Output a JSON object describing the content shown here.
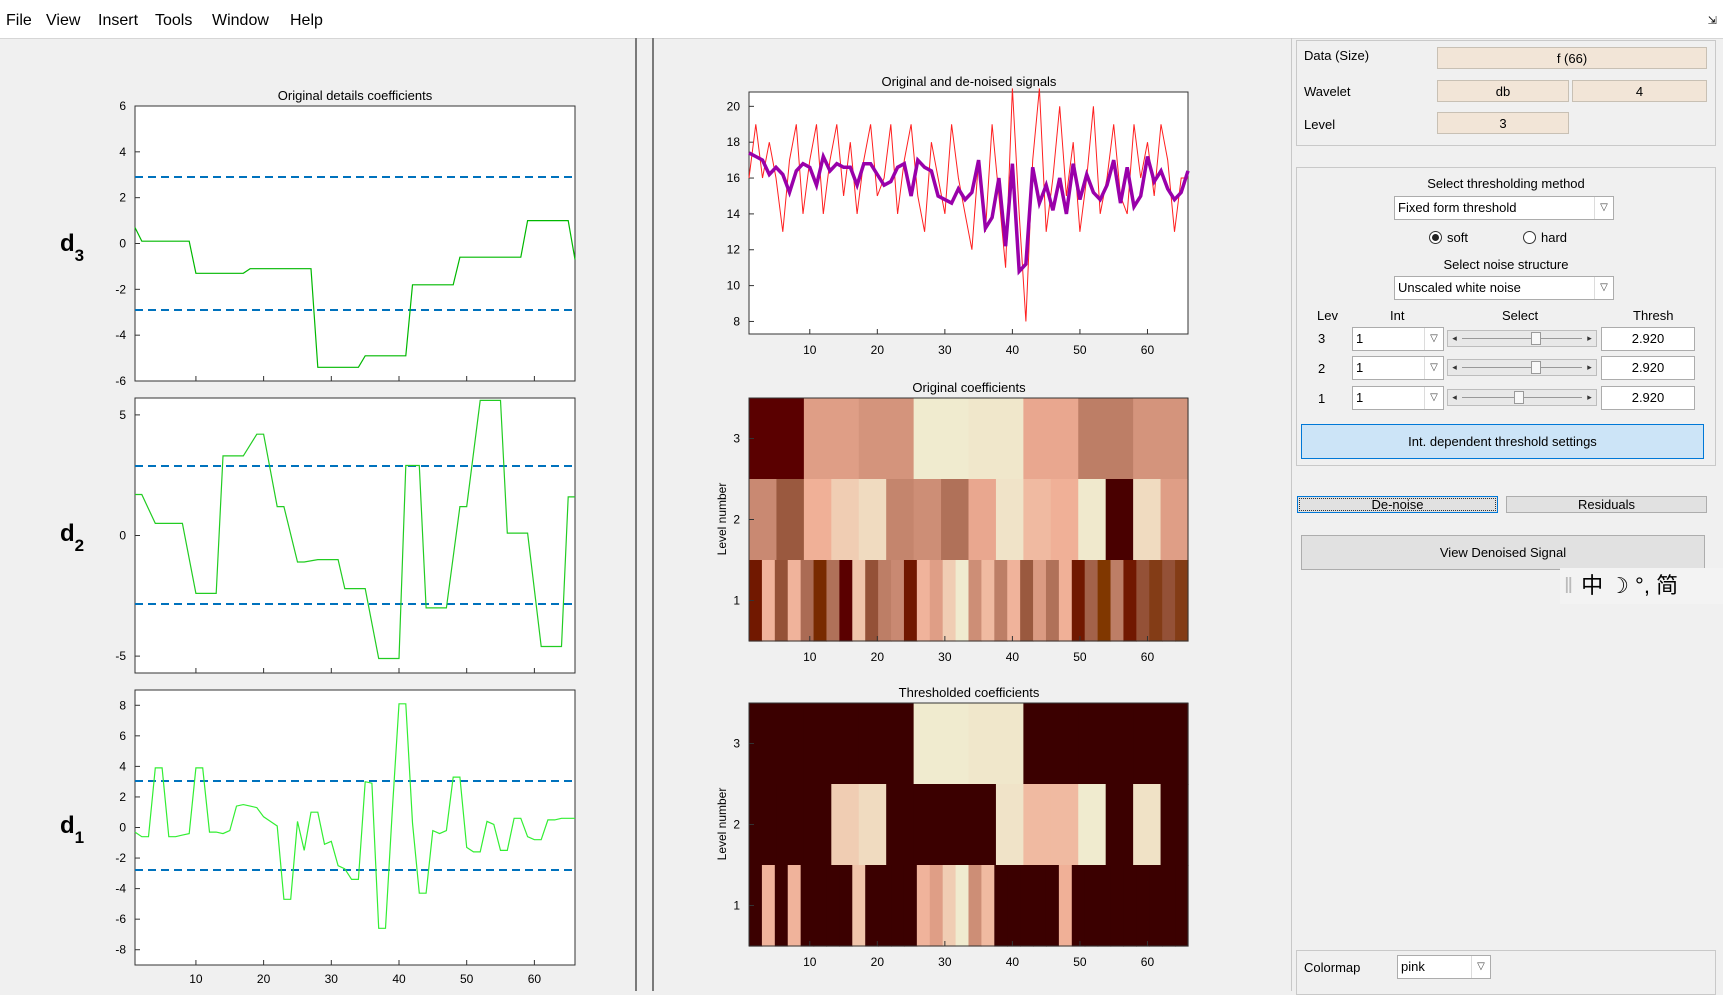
{
  "menu": [
    "File",
    "View",
    "Insert",
    "Tools",
    "Window",
    "Help"
  ],
  "left_plots": {
    "title": "Original details coefficients",
    "row_labels": [
      {
        "main": "d",
        "sub": "3"
      },
      {
        "main": "d",
        "sub": "2"
      },
      {
        "main": "d",
        "sub": "1"
      }
    ],
    "x_ticks": [
      "10",
      "20",
      "30",
      "40",
      "50",
      "60"
    ],
    "d3_yticks": [
      "6",
      "4",
      "2",
      "0",
      "-2",
      "-4",
      "-6"
    ],
    "d2_yticks": [
      "5",
      "0",
      "-5"
    ],
    "d1_yticks": [
      "8",
      "6",
      "4",
      "2",
      "0",
      "-2",
      "-4",
      "-6",
      "-8"
    ]
  },
  "middle_plots": {
    "signal_title": "Original and de-noised signals",
    "signal_yticks": [
      "20",
      "18",
      "16",
      "14",
      "12",
      "10",
      "8"
    ],
    "orig_coef_title": "Original coefficients",
    "thresh_coef_title": "Thresholded coefficients",
    "level_axis_label": "Level number",
    "level_ticks": [
      "3",
      "2",
      "1"
    ],
    "x_ticks": [
      "10",
      "20",
      "30",
      "40",
      "50",
      "60"
    ]
  },
  "controls": {
    "data_label": "Data  (Size)",
    "data_value": "f  (66)",
    "wavelet_label": "Wavelet",
    "wavelet_family": "db",
    "wavelet_order": "4",
    "level_label": "Level",
    "level_value": "3",
    "select_method_label": "Select thresholding method",
    "method_value": "Fixed form threshold",
    "soft_label": "soft",
    "hard_label": "hard",
    "soft_selected": true,
    "noise_label": "Select noise structure",
    "noise_value": "Unscaled white noise",
    "col_lev": "Lev",
    "col_int": "Int",
    "col_select": "Select",
    "col_thresh": "Thresh",
    "rows": [
      {
        "lev": "3",
        "int": "1",
        "thresh": "2.920",
        "slider_pos": 0.62
      },
      {
        "lev": "2",
        "int": "1",
        "thresh": "2.920",
        "slider_pos": 0.62
      },
      {
        "lev": "1",
        "int": "1",
        "thresh": "2.920",
        "slider_pos": 0.46
      }
    ],
    "int_dep_button": "Int. dependent threshold settings",
    "denoise_button": "De-noise",
    "residuals_button": "Residuals",
    "view_button": "View Denoised Signal",
    "colormap_label": "Colormap",
    "colormap_value": "pink"
  },
  "ime_toolbar": "中 ☽ °, 简",
  "colors": {
    "detail_green": "#00b800",
    "threshold_blue": "#0072bd",
    "signal_red": "#ff2020",
    "denoised_purple": "#9900aa",
    "button_blue": "#cce4f7"
  },
  "chart_data": [
    {
      "type": "line",
      "title": "Original details coefficients",
      "ylabel": "d3",
      "xlim": [
        1,
        66
      ],
      "ylim": [
        -6,
        6
      ],
      "threshold": [
        2.92,
        -2.92
      ],
      "x": [
        1,
        2,
        9,
        10,
        17,
        18,
        23,
        24,
        27,
        28,
        34,
        35,
        41,
        42,
        48,
        49,
        58,
        59,
        65,
        66
      ],
      "y": [
        0.7,
        0.1,
        0.1,
        -1.3,
        -1.3,
        -1.1,
        -1.1,
        -1.1,
        -1.1,
        -5.4,
        -5.4,
        -4.9,
        -4.9,
        -1.8,
        -1.8,
        -0.6,
        -0.6,
        1.0,
        1.0,
        -0.7
      ]
    },
    {
      "type": "line",
      "ylabel": "d2",
      "xlim": [
        1,
        66
      ],
      "ylim": [
        -5.7,
        5.7
      ],
      "threshold": [
        2.92,
        -2.92
      ],
      "x": [
        1,
        2,
        4,
        5,
        7,
        8,
        10,
        11,
        13,
        14,
        16,
        17,
        19,
        20,
        22,
        23,
        25,
        26,
        28,
        29,
        31,
        32,
        34,
        35,
        37,
        38,
        40,
        41,
        43,
        44,
        46,
        47,
        49,
        50,
        52,
        53,
        55,
        56,
        58,
        59,
        61,
        62,
        64,
        65,
        66
      ],
      "y": [
        1.7,
        1.7,
        0.5,
        0.5,
        0.5,
        0.5,
        -2.4,
        -2.4,
        -2.4,
        3.3,
        3.3,
        3.3,
        4.2,
        4.2,
        1.2,
        1.2,
        -1.1,
        -1.1,
        -1.0,
        -1.0,
        -1.0,
        -2.2,
        -2.2,
        -2.2,
        -5.1,
        -5.1,
        -5.1,
        2.9,
        2.9,
        -3.0,
        -3.0,
        -3.0,
        1.2,
        1.2,
        5.6,
        5.6,
        5.6,
        0.1,
        0.1,
        0.1,
        -4.6,
        -4.6,
        -4.6,
        1.6,
        1.6
      ]
    },
    {
      "type": "line",
      "ylabel": "d1",
      "xlim": [
        1,
        66
      ],
      "ylim": [
        -9,
        9
      ],
      "threshold": [
        2.92,
        -2.92
      ],
      "x": [
        1,
        2,
        3,
        4,
        5,
        6,
        7,
        8,
        9,
        10,
        11,
        12,
        13,
        14,
        15,
        16,
        17,
        18,
        19,
        20,
        21,
        22,
        23,
        24,
        25,
        26,
        27,
        28,
        29,
        30,
        31,
        32,
        33,
        34,
        35,
        36,
        37,
        38,
        39,
        40,
        41,
        42,
        43,
        44,
        45,
        46,
        47,
        48,
        49,
        50,
        51,
        52,
        53,
        54,
        55,
        56,
        57,
        58,
        59,
        60,
        61,
        62,
        63,
        64,
        65,
        66
      ],
      "y": [
        -0.3,
        -0.6,
        -0.6,
        3.9,
        3.9,
        -0.6,
        -0.6,
        -0.5,
        -0.4,
        3.9,
        3.9,
        -0.3,
        -0.3,
        -0.4,
        -0.2,
        1.4,
        1.5,
        1.4,
        1.3,
        0.7,
        0.4,
        0.1,
        -4.7,
        -4.7,
        0.4,
        -1.5,
        1.0,
        1.0,
        -1.1,
        -0.9,
        -2.5,
        -2.7,
        -3.4,
        -3.4,
        3.0,
        2.9,
        -6.6,
        -6.6,
        1.0,
        8.1,
        8.1,
        0.3,
        -4.3,
        -4.3,
        -0.2,
        -0.4,
        -0.2,
        3.3,
        3.3,
        -1.3,
        -1.6,
        -1.6,
        0.4,
        0.2,
        -1.5,
        -1.5,
        0.6,
        0.6,
        -0.6,
        -0.8,
        -0.8,
        0.5,
        0.5,
        0.6,
        0.6,
        0.6
      ]
    },
    {
      "type": "line",
      "title": "Original and de-noised signals",
      "xlim": [
        1,
        66
      ],
      "ylim": [
        7.3,
        20.8
      ],
      "series": [
        {
          "x": [
            1,
            2,
            3,
            4,
            5,
            6,
            7,
            8,
            9,
            10,
            11,
            12,
            13,
            14,
            15,
            16,
            17,
            18,
            19,
            20,
            21,
            22,
            23,
            24,
            25,
            26,
            27,
            28,
            29,
            30,
            31,
            32,
            33,
            34,
            35,
            36,
            37,
            38,
            39,
            40,
            41,
            42,
            43,
            44,
            45,
            46,
            47,
            48,
            49,
            50,
            51,
            52,
            53,
            54,
            55,
            56,
            57,
            58,
            59,
            60,
            61,
            62,
            63,
            64,
            65,
            66
          ],
          "y": [
            16,
            19,
            16,
            18,
            16,
            13,
            17,
            19,
            14,
            17,
            19,
            14,
            17,
            19,
            15,
            18,
            14,
            17,
            19,
            15,
            16,
            19,
            14,
            17,
            19,
            15,
            13,
            18,
            16,
            14,
            19,
            16,
            14,
            12,
            17,
            13,
            19,
            15,
            11,
            21,
            14,
            8,
            17,
            21,
            13,
            16,
            20,
            15,
            18,
            13,
            16,
            20,
            14,
            16,
            19,
            15,
            14,
            19,
            16,
            18,
            15,
            19,
            17,
            13,
            16,
            16
          ]
        },
        {
          "x": [
            1,
            2,
            3,
            4,
            5,
            6,
            7,
            8,
            9,
            10,
            11,
            12,
            13,
            14,
            15,
            16,
            17,
            18,
            19,
            20,
            21,
            22,
            23,
            24,
            25,
            26,
            27,
            28,
            29,
            30,
            31,
            32,
            33,
            34,
            35,
            36,
            37,
            38,
            39,
            40,
            41,
            42,
            43,
            44,
            45,
            46,
            47,
            48,
            49,
            50,
            51,
            52,
            53,
            54,
            55,
            56,
            57,
            58,
            59,
            60,
            61,
            62,
            63,
            64,
            65,
            66
          ],
          "y": [
            17.4,
            17.2,
            17.0,
            16.2,
            16.6,
            16.2,
            15.2,
            16.4,
            16.8,
            16.6,
            15.6,
            17.2,
            16.4,
            16.8,
            16.6,
            16.6,
            15.6,
            16.8,
            16.8,
            16.2,
            15.6,
            15.8,
            16.6,
            16.8,
            15.0,
            17.0,
            16.6,
            16.4,
            15.0,
            14.8,
            14.6,
            15.4,
            14.8,
            15.2,
            17.0,
            13.2,
            13.8,
            16.0,
            12.2,
            16.8,
            10.8,
            11.2,
            16.6,
            14.6,
            15.6,
            14.2,
            16.0,
            14.0,
            16.8,
            14.8,
            16.2,
            15.2,
            14.8,
            15.6,
            17.0,
            14.6,
            16.6,
            14.4,
            15.0,
            17.2,
            15.8,
            16.4,
            15.4,
            14.8,
            15.2,
            16.4
          ]
        }
      ]
    },
    {
      "type": "heatmap",
      "title": "Original coefficients",
      "ylabel": "Level number",
      "levels": [
        {
          "level": "3",
          "cells": [
            0.05,
            0.5,
            0.45,
            1.0,
            0.97,
            0.55,
            0.35,
            0.45
          ]
        },
        {
          "level": "2",
          "cells": [
            0.4,
            0.22,
            0.6,
            0.78,
            0.88,
            0.38,
            0.42,
            0.3,
            0.55,
            0.94,
            0.66,
            0.6,
            0.98,
            0.02,
            0.88,
            0.5
          ]
        },
        {
          "level": "1",
          "cells": [
            0.1,
            0.62,
            0.2,
            0.62,
            0.28,
            0.12,
            0.3,
            0.05,
            0.72,
            0.2,
            0.35,
            0.4,
            0.1,
            0.62,
            0.5,
            0.78,
            1.0,
            0.42,
            0.66,
            0.35,
            0.62,
            0.22,
            0.48,
            0.3,
            0.6,
            0.1,
            0.25,
            0.14,
            0.35,
            0.1,
            0.2,
            0.15,
            0.2,
            0.15
          ]
        }
      ]
    },
    {
      "type": "heatmap",
      "title": "Thresholded coefficients",
      "ylabel": "Level number",
      "levels": [
        {
          "level": "3",
          "cells": [
            0,
            0,
            0,
            1.0,
            0.97,
            0,
            0,
            0
          ]
        },
        {
          "level": "2",
          "cells": [
            0,
            0,
            0,
            0.78,
            0.88,
            0,
            0,
            0,
            0,
            0.94,
            0.66,
            0.66,
            1.0,
            0,
            0.93,
            0
          ]
        },
        {
          "level": "1",
          "cells": [
            0,
            0.62,
            0,
            0.62,
            0,
            0,
            0,
            0,
            0.72,
            0,
            0,
            0,
            0,
            0.62,
            0.5,
            0.78,
            1.0,
            0.42,
            0.66,
            0,
            0,
            0,
            0,
            0,
            0.6,
            0,
            0,
            0,
            0,
            0,
            0,
            0,
            0,
            0
          ]
        }
      ]
    }
  ]
}
